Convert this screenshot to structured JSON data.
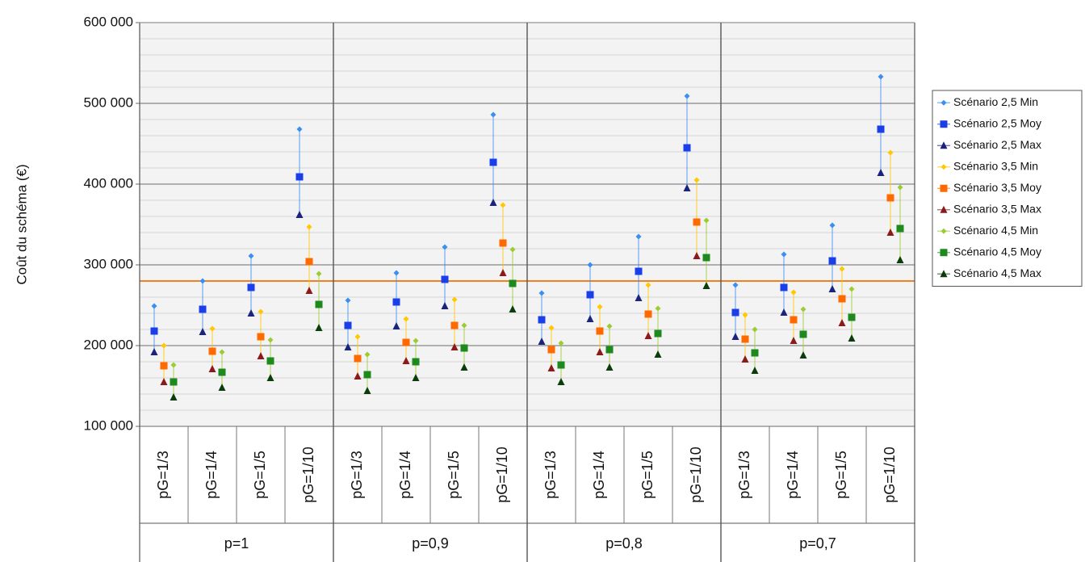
{
  "chart_data": {
    "type": "range-dot",
    "y_label": "Coût du schéma (€)",
    "groups": [
      "p=1",
      "p=0,9",
      "p=0,8",
      "p=0,7"
    ],
    "categories": [
      "pG=1/3",
      "pG=1/4",
      "pG=1/5",
      "pG=1/10",
      "pG=1/3",
      "pG=1/4",
      "pG=1/5",
      "pG=1/10",
      "pG=1/3",
      "pG=1/4",
      "pG=1/5",
      "pG=1/10",
      "pG=1/3",
      "pG=1/4",
      "pG=1/5",
      "pG=1/10"
    ],
    "ylim": [
      100000,
      600000
    ],
    "yticks": [
      {
        "value": 100000,
        "label": "100 000"
      },
      {
        "value": 200000,
        "label": "200 000"
      },
      {
        "value": 300000,
        "label": "300 000"
      },
      {
        "value": 400000,
        "label": "400 000"
      },
      {
        "value": 500000,
        "label": "500 000"
      },
      {
        "value": 600000,
        "label": "600 000"
      }
    ],
    "grid": true,
    "reference_line": {
      "value": 280000,
      "color": "#f08020"
    },
    "legend": "right",
    "series": [
      {
        "name": "Scénario 2,5 Min",
        "color": "#3a8ff0",
        "marker": "diamond",
        "values": [
          249000,
          280000,
          311000,
          468000,
          256000,
          290000,
          322000,
          486000,
          265000,
          300000,
          335000,
          509000,
          275000,
          313000,
          349000,
          533000
        ]
      },
      {
        "name": "Scénario 2,5 Moy",
        "color": "#1a3fe8",
        "marker": "square",
        "values": [
          218000,
          245000,
          272000,
          409000,
          225000,
          254000,
          282000,
          427000,
          232000,
          263000,
          292000,
          445000,
          241000,
          272000,
          305000,
          468000
        ]
      },
      {
        "name": "Scénario 2,5 Max",
        "color": "#1a237e",
        "marker": "triangle",
        "values": [
          192000,
          217000,
          240000,
          362000,
          198000,
          224000,
          249000,
          377000,
          205000,
          233000,
          259000,
          395000,
          211000,
          241000,
          270000,
          414000
        ]
      },
      {
        "name": "Scénario 3,5 Min",
        "color": "#ffc800",
        "marker": "diamond",
        "values": [
          200000,
          221000,
          242000,
          347000,
          211000,
          233000,
          257000,
          374000,
          222000,
          248000,
          275000,
          405000,
          238000,
          266000,
          295000,
          439000
        ]
      },
      {
        "name": "Scénario 3,5 Moy",
        "color": "#ff6a00",
        "marker": "square",
        "values": [
          175000,
          193000,
          211000,
          304000,
          184000,
          204000,
          225000,
          327000,
          195000,
          218000,
          239000,
          353000,
          208000,
          232000,
          258000,
          383000
        ]
      },
      {
        "name": "Scénario 3,5 Max",
        "color": "#8b1a1a",
        "marker": "triangle",
        "values": [
          155000,
          171000,
          187000,
          268000,
          162000,
          181000,
          198000,
          290000,
          172000,
          192000,
          212000,
          311000,
          183000,
          206000,
          228000,
          340000
        ]
      },
      {
        "name": "Scénario 4,5 Min",
        "color": "#9acd32",
        "marker": "diamond",
        "values": [
          176000,
          192000,
          207000,
          289000,
          189000,
          206000,
          225000,
          319000,
          203000,
          224000,
          246000,
          355000,
          220000,
          245000,
          270000,
          396000
        ]
      },
      {
        "name": "Scénario 4,5 Moy",
        "color": "#1e8a1e",
        "marker": "square",
        "values": [
          155000,
          167000,
          181000,
          251000,
          164000,
          180000,
          197000,
          277000,
          176000,
          195000,
          215000,
          309000,
          191000,
          214000,
          235000,
          345000
        ]
      },
      {
        "name": "Scénario 4,5 Max",
        "color": "#0b3d0b",
        "marker": "triangle",
        "values": [
          136000,
          148000,
          160000,
          222000,
          144000,
          160000,
          173000,
          245000,
          155000,
          173000,
          189000,
          274000,
          169000,
          188000,
          209000,
          306000
        ]
      }
    ]
  }
}
